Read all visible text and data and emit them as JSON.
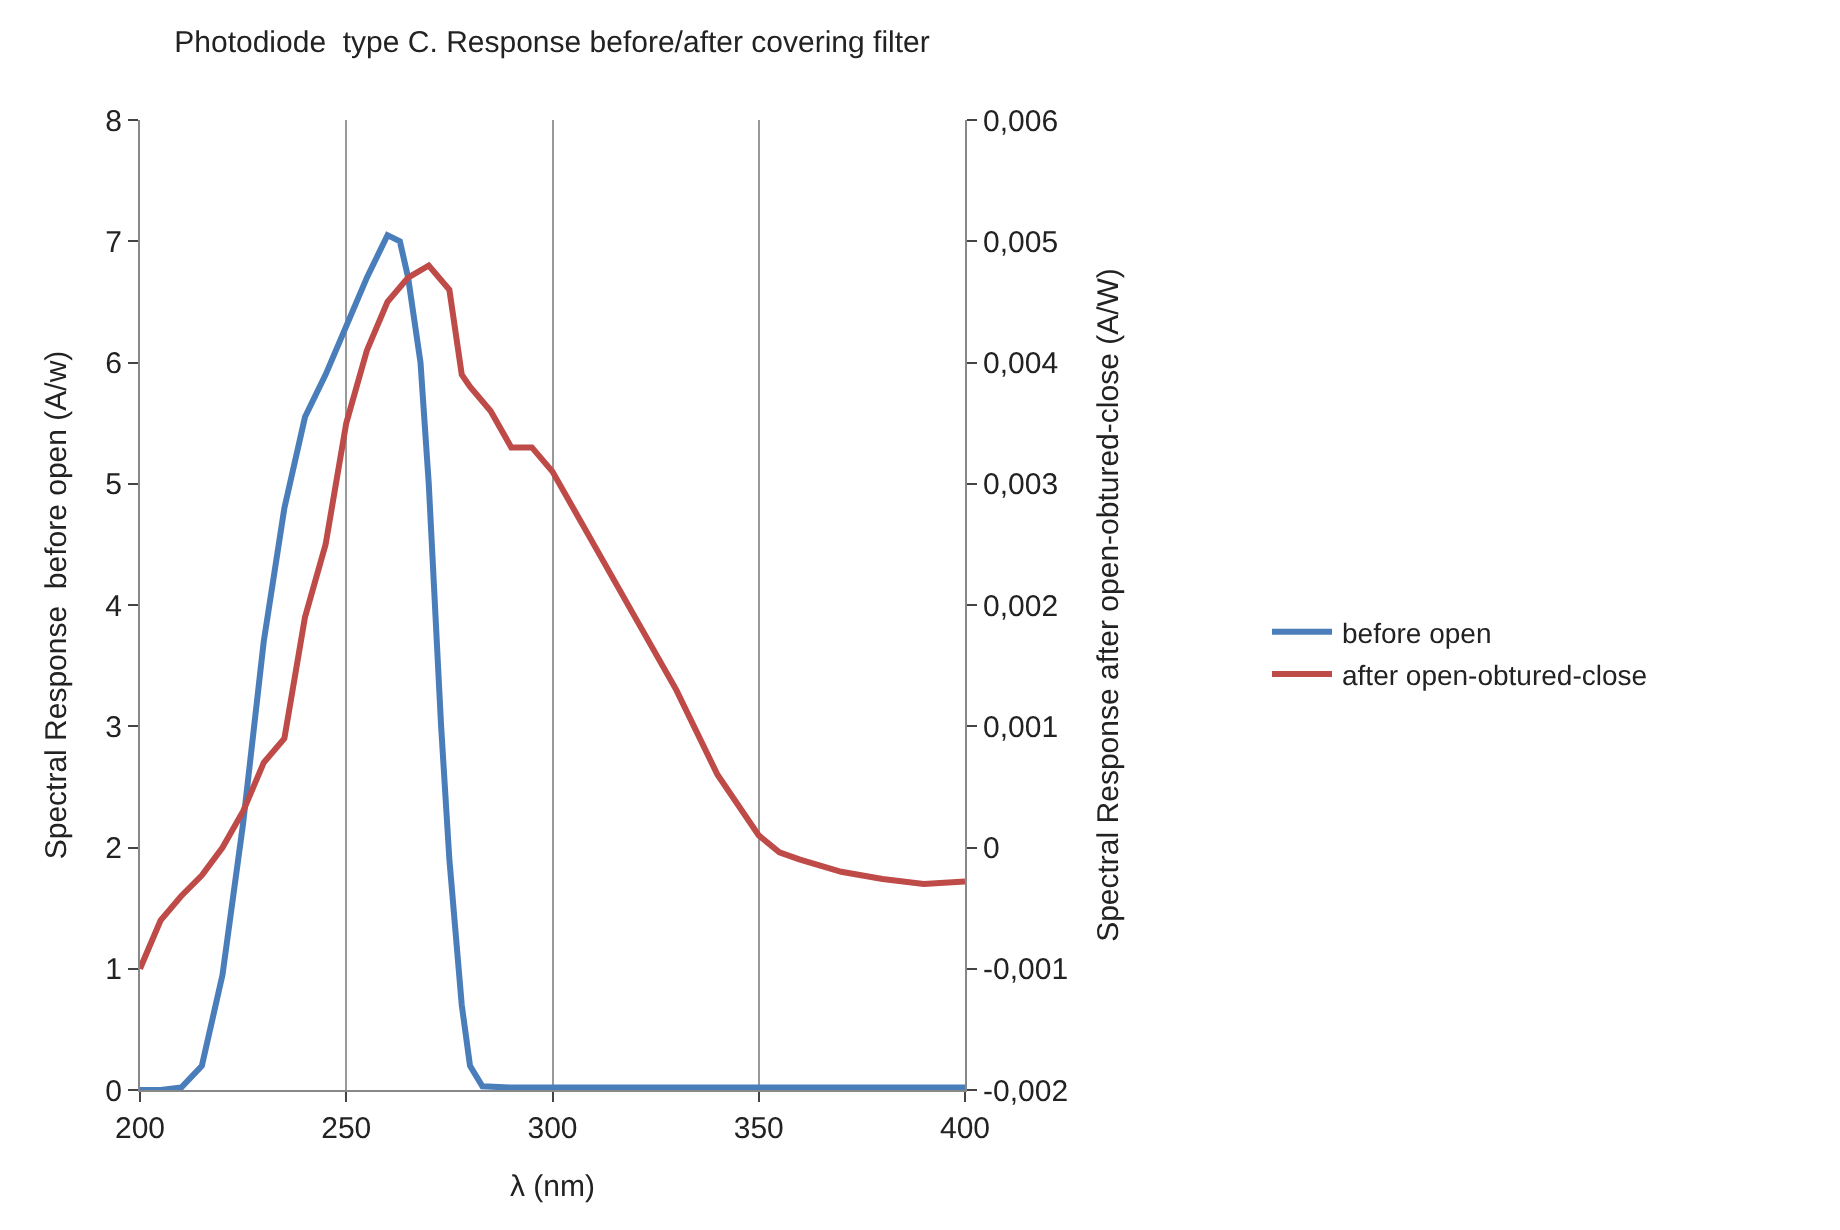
{
  "chart_data": {
    "type": "line",
    "title": "Photodiode  type C. Response before/after covering filter",
    "xlabel": "λ (nm)",
    "ylabel": "Spectral Response  before open (A/w)",
    "y2label": "Spectral Response after open-obtured-close (A/W)",
    "xlim": [
      200,
      400
    ],
    "xticks": [
      200,
      250,
      300,
      350,
      400
    ],
    "ylim": [
      0,
      8
    ],
    "yticks": [
      0,
      1,
      2,
      3,
      4,
      5,
      6,
      7,
      8
    ],
    "y2lim": [
      -0.002,
      0.006
    ],
    "y2ticks": [
      {
        "value": -0.002,
        "label": "-0,002"
      },
      {
        "value": -0.001,
        "label": "-0,001"
      },
      {
        "value": 0,
        "label": "0"
      },
      {
        "value": 0.001,
        "label": "0,001"
      },
      {
        "value": 0.002,
        "label": "0,002"
      },
      {
        "value": 0.003,
        "label": "0,003"
      },
      {
        "value": 0.004,
        "label": "0,004"
      },
      {
        "value": 0.005,
        "label": "0,005"
      },
      {
        "value": 0.006,
        "label": "0,006"
      }
    ],
    "grid": "x",
    "legend": "right",
    "marker": "none",
    "line_style": "solid",
    "series": [
      {
        "name": "before open",
        "color": "#4a7ebb",
        "x": [
          200,
          205,
          210,
          215,
          220,
          225,
          230,
          235,
          240,
          245,
          250,
          255,
          260,
          263,
          265,
          268,
          270,
          273,
          275,
          278,
          280,
          283,
          290,
          300,
          350,
          400
        ],
        "values": [
          0,
          0,
          0.02,
          0.2,
          0.95,
          2.2,
          3.7,
          4.8,
          5.55,
          5.9,
          6.3,
          6.7,
          7.05,
          7.0,
          6.7,
          6.0,
          5.0,
          3.0,
          1.9,
          0.7,
          0.2,
          0.03,
          0.02,
          0.02,
          0.02,
          0.02
        ]
      },
      {
        "name": "after open-obtured-close",
        "color": "#be4b48",
        "axis": "y2",
        "x": [
          200,
          205,
          210,
          215,
          220,
          225,
          230,
          235,
          240,
          245,
          250,
          255,
          260,
          265,
          270,
          275,
          278,
          280,
          285,
          290,
          295,
          300,
          310,
          320,
          330,
          340,
          350,
          355,
          360,
          370,
          380,
          390,
          400
        ],
        "values": [
          -0.001,
          -0.0006,
          -0.0004,
          -0.00023,
          0,
          0.0003,
          0.0007,
          0.0009,
          0.0019,
          0.0025,
          0.0035,
          0.0041,
          0.0045,
          0.0047,
          0.0048,
          0.0046,
          0.0039,
          0.0038,
          0.0036,
          0.0033,
          0.0033,
          0.0031,
          0.0025,
          0.0019,
          0.0013,
          0.0006,
          0.0001,
          -4e-05,
          -0.0001,
          -0.0002,
          -0.00026,
          -0.0003,
          -0.00028
        ]
      }
    ]
  }
}
